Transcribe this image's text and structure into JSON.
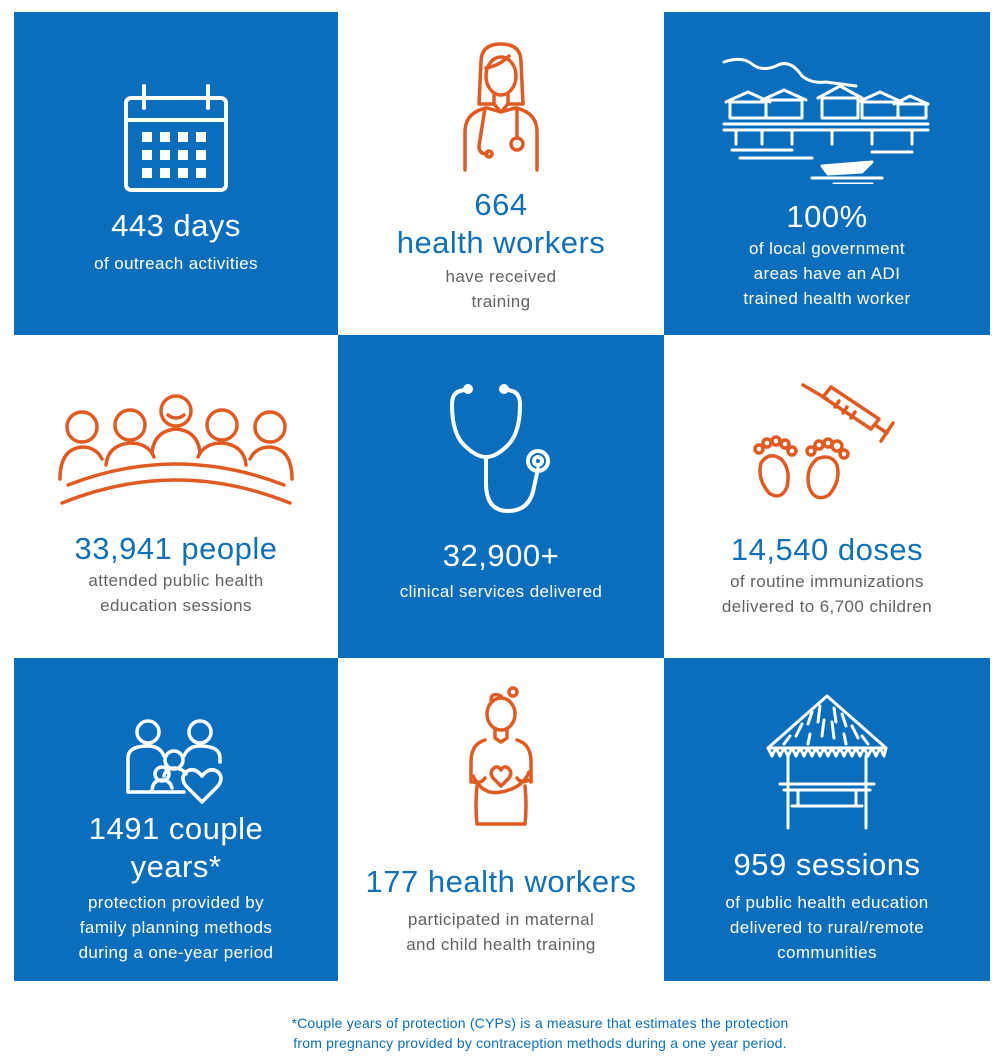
{
  "colors": {
    "blue": "#0a6ebd",
    "orange": "#e05a22",
    "gray": "#5f6266"
  },
  "tiles": [
    {
      "icon": "calendar-icon",
      "headline": [
        "443 days"
      ],
      "caption": [
        "of outreach activities"
      ]
    },
    {
      "icon": "female-doctor-icon",
      "headline": [
        "664",
        "health workers"
      ],
      "caption": [
        "have received",
        "training"
      ]
    },
    {
      "icon": "stilt-village-icon",
      "headline": [
        "100%"
      ],
      "caption": [
        "of local government",
        "areas have an ADI",
        "trained health worker"
      ]
    },
    {
      "icon": "audience-group-icon",
      "headline": [
        "33,941 people"
      ],
      "caption": [
        "attended public health",
        "education sessions"
      ]
    },
    {
      "icon": "stethoscope-icon",
      "headline": [
        "32,900+"
      ],
      "caption": [
        "clinical services delivered"
      ]
    },
    {
      "icon": "baby-feet-syringe-icon",
      "headline": [
        "14,540 doses"
      ],
      "caption": [
        "of routine immunizations",
        "delivered to 6,700 children"
      ]
    },
    {
      "icon": "family-heart-icon",
      "headline": [
        "1491 couple",
        "years*"
      ],
      "caption": [
        "protection provided by",
        "family planning methods",
        "during a one-year period"
      ]
    },
    {
      "icon": "pregnant-woman-icon",
      "headline": [
        "177 health workers"
      ],
      "caption": [
        "participated in maternal",
        "and child health training"
      ]
    },
    {
      "icon": "thatched-hut-icon",
      "headline": [
        "959 sessions"
      ],
      "caption": [
        "of public health education",
        "delivered to rural/remote",
        "communities"
      ]
    }
  ],
  "footnote": [
    "*Couple years of protection (CYPs) is a measure that estimates the protection",
    "from pregnancy provided by contraception methods during a one year period."
  ]
}
